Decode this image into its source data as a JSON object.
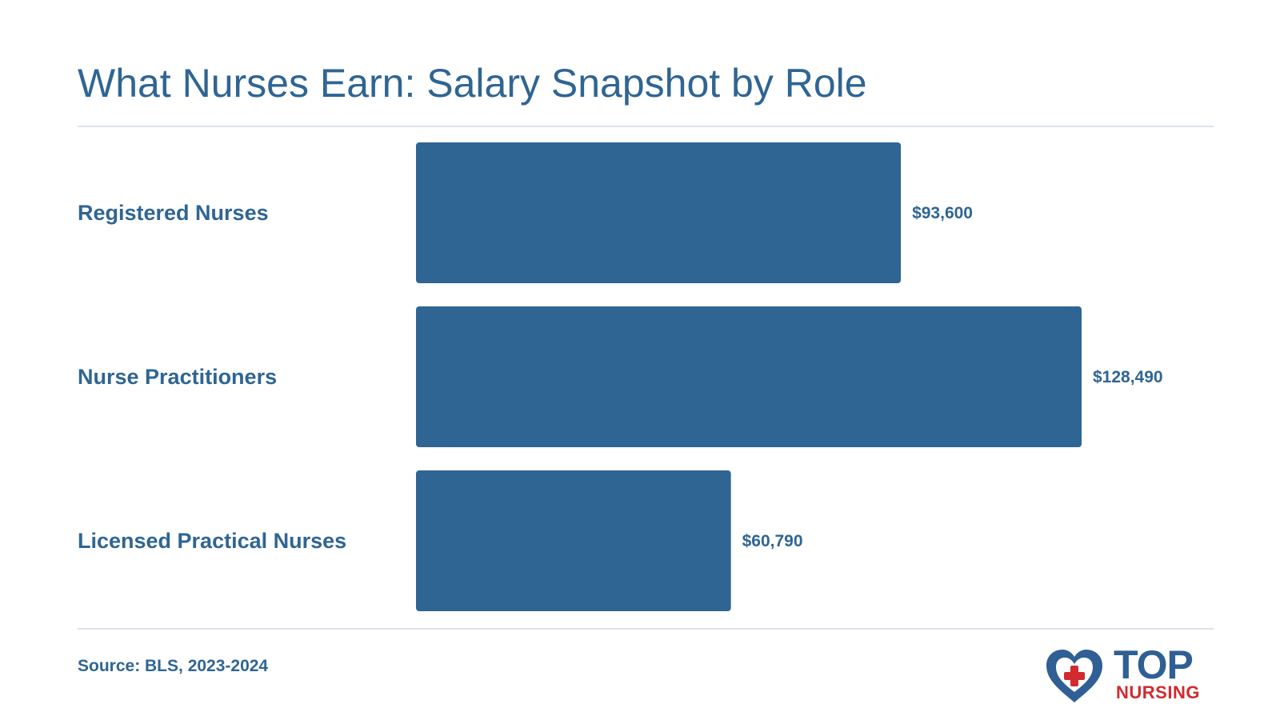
{
  "title": "What Nurses Earn: Salary Snapshot by Role",
  "source": "Source: BLS, 2023-2024",
  "logo": {
    "line1": "TOP",
    "line2": "NURSING",
    "icon": "heart-cross-icon"
  },
  "colors": {
    "title": "#2f6593",
    "bar": "#2f6593",
    "label": "#2f6593",
    "rule": "#dde4ea",
    "logo_blue": "#2f5f94",
    "logo_red": "#d12a2f"
  },
  "chart_data": {
    "type": "bar",
    "orientation": "horizontal",
    "title": "What Nurses Earn: Salary Snapshot by Role",
    "categories": [
      "Registered Nurses",
      "Nurse Practitioners",
      "Licensed Practical Nurses"
    ],
    "values": [
      93600,
      128490,
      60790
    ],
    "value_labels": [
      "$93,600",
      "$128,490",
      "$60,790"
    ],
    "xlabel": "",
    "ylabel": "",
    "xlim": [
      0,
      128490
    ],
    "grid": false,
    "legend": "none"
  }
}
